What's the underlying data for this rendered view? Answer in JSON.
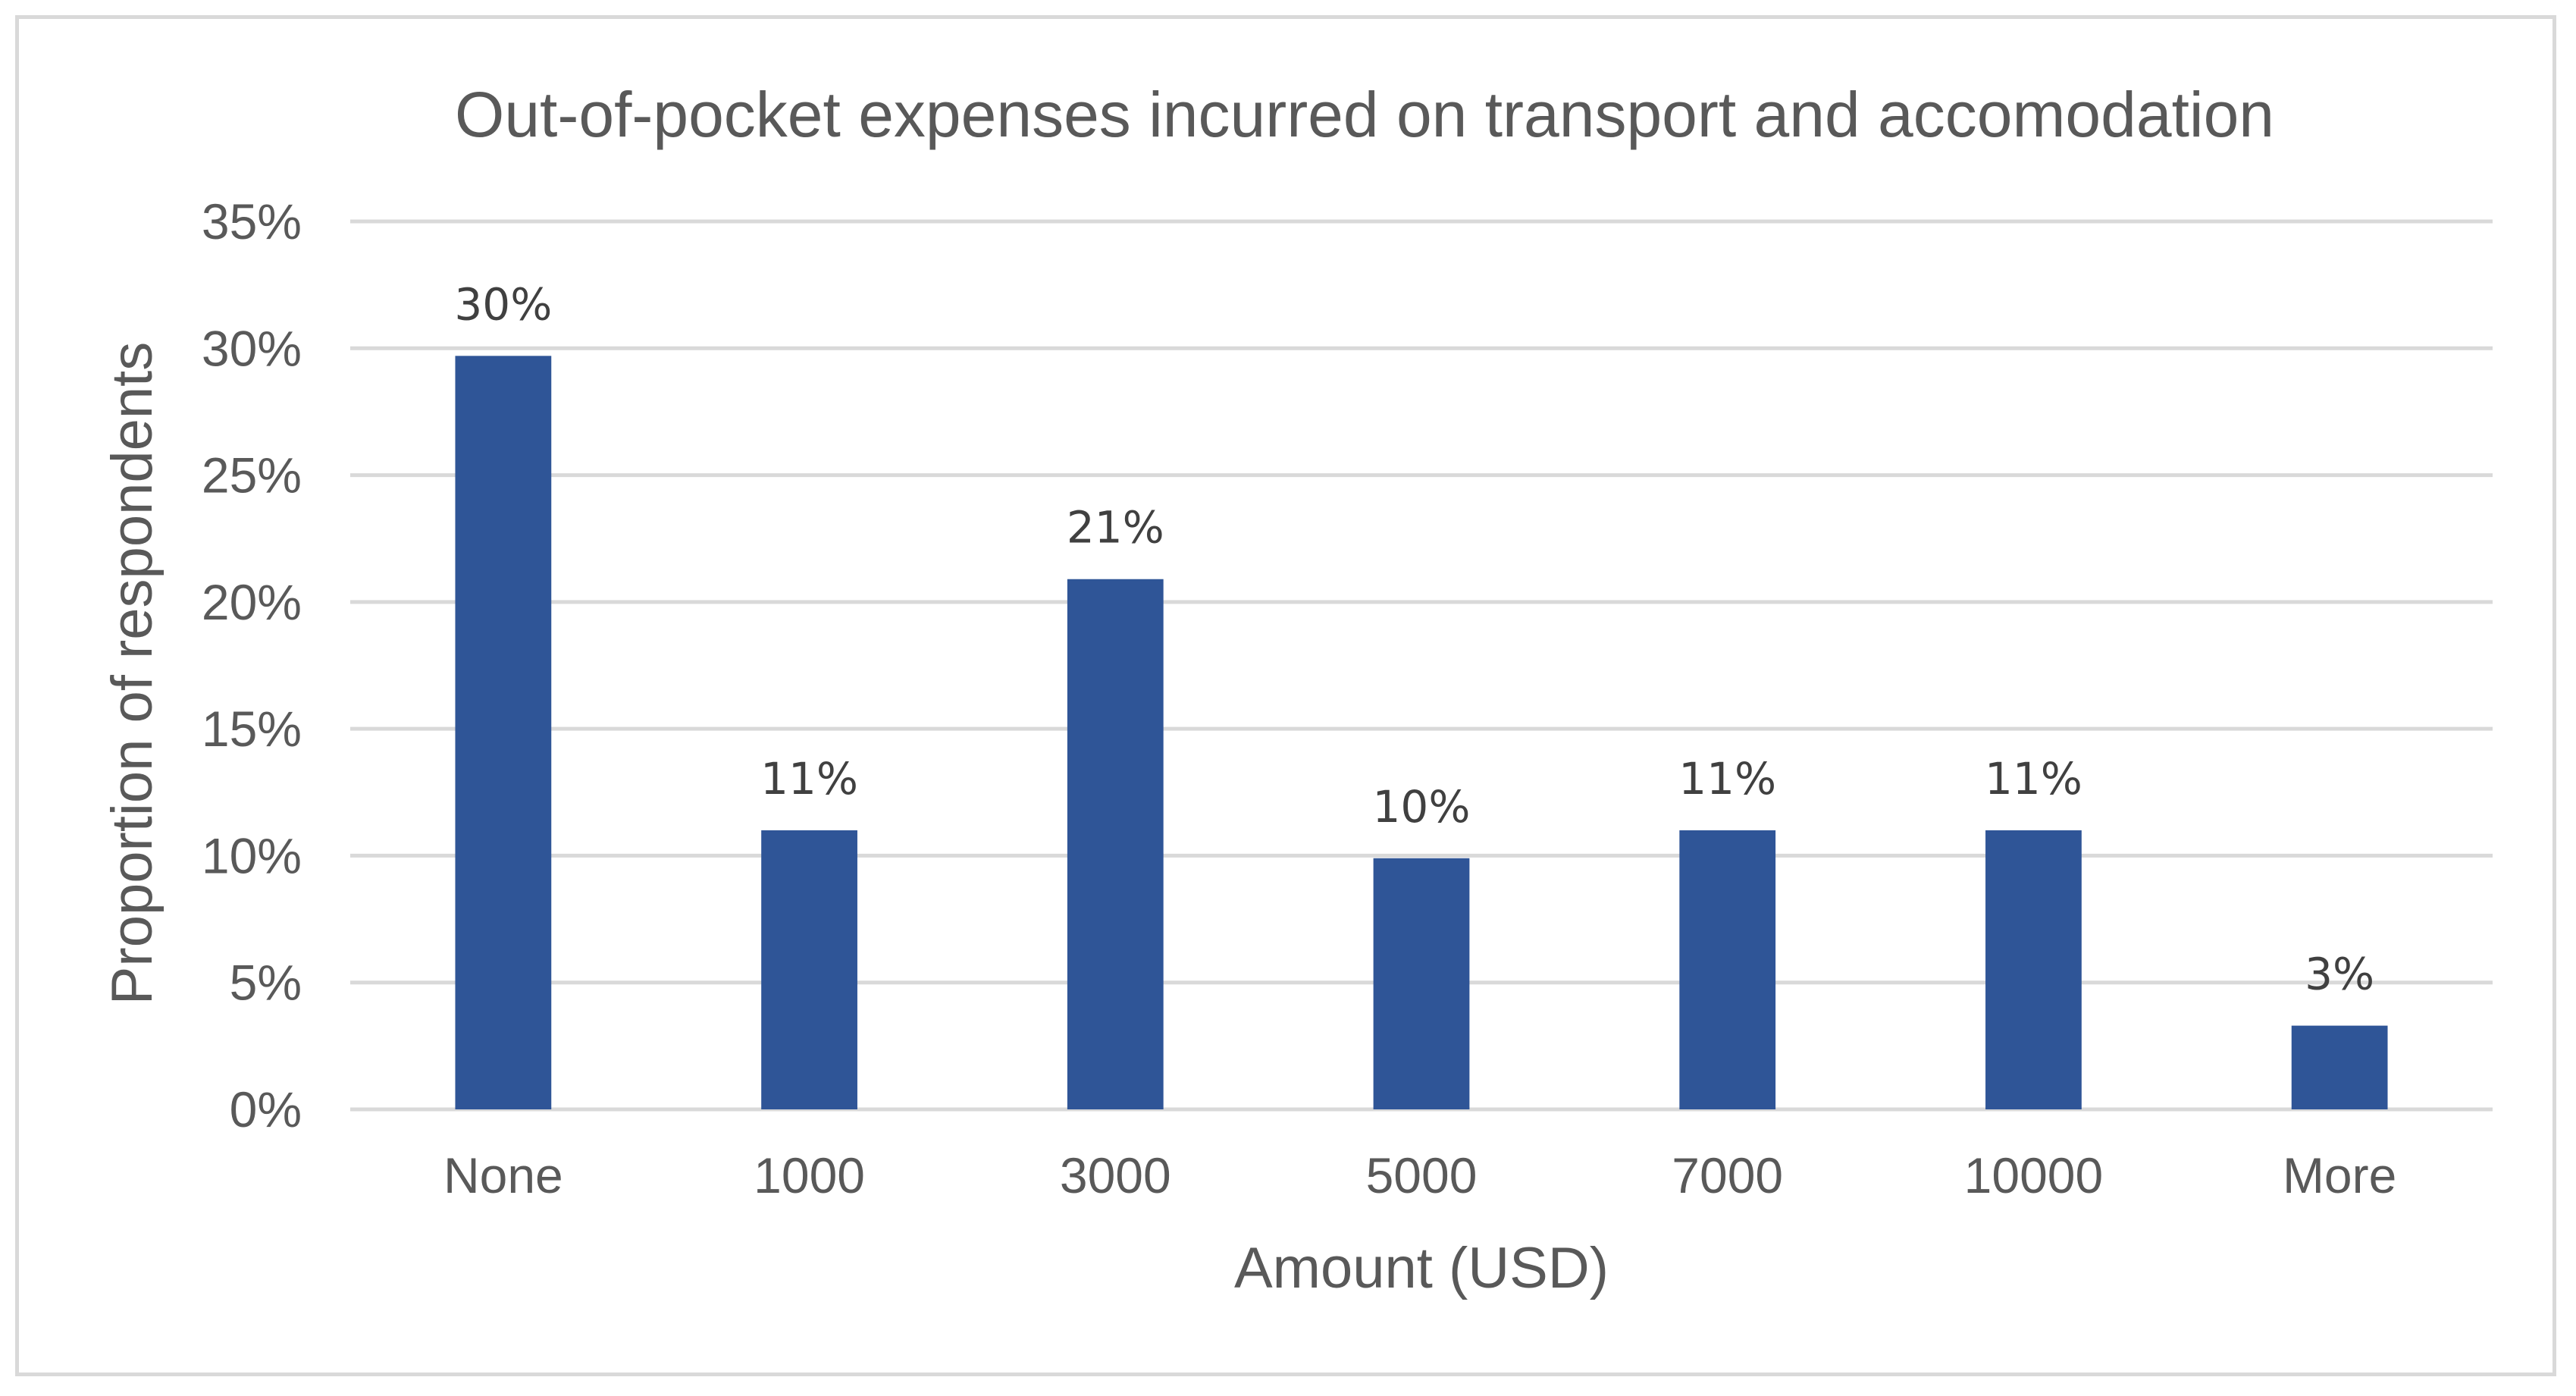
{
  "chart_data": {
    "type": "bar",
    "title": "Out-of-pocket expenses incurred on transport and accomodation",
    "xlabel": "Amount (USD)",
    "ylabel": "Proportion of respondents",
    "categories": [
      "None",
      "1000",
      "3000",
      "5000",
      "7000",
      "10000",
      "More"
    ],
    "values": [
      29.7,
      11.0,
      20.9,
      9.9,
      11.0,
      11.0,
      3.3
    ],
    "data_labels": [
      "30%",
      "11%",
      "21%",
      "10%",
      "11%",
      "11%",
      "3%"
    ],
    "ylim": [
      0,
      35
    ],
    "yticks": [
      0,
      5,
      10,
      15,
      20,
      25,
      30,
      35
    ],
    "ytick_labels": [
      "0%",
      "5%",
      "10%",
      "15%",
      "20%",
      "25%",
      "30%",
      "35%"
    ],
    "grid": true,
    "legend": "none",
    "bar_color": "#2f5597"
  }
}
